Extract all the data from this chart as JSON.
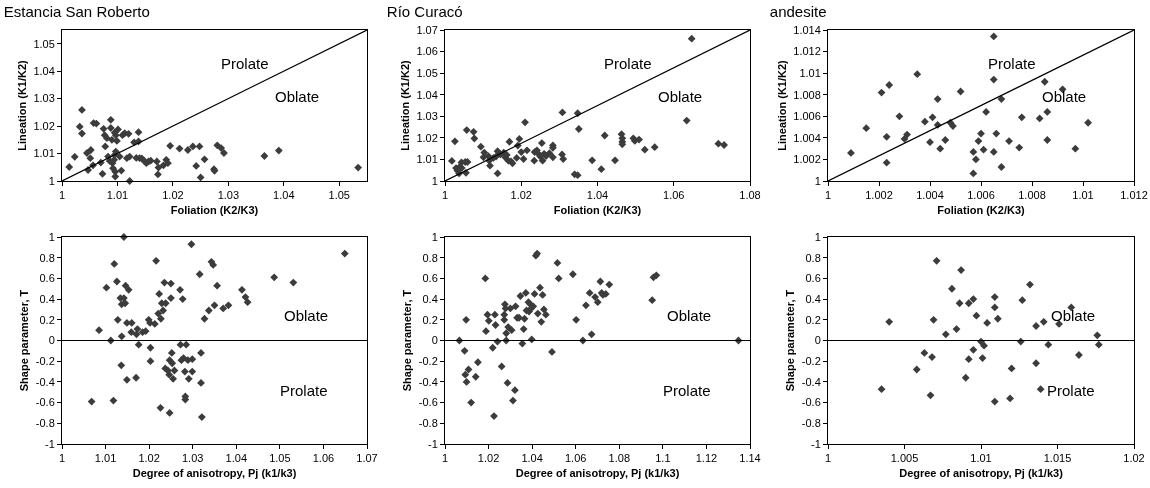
{
  "chart_data": [
    {
      "type": "scatter",
      "title": "Estancia San Roberto",
      "xlabel": "Foliation (K2/K3)",
      "ylabel": "Lineation (K1/K2)",
      "marker": "diamond",
      "grid": false,
      "xlim": [
        1,
        1.055
      ],
      "xticks": [
        1,
        1.01,
        1.02,
        1.03,
        1.04,
        1.05
      ],
      "ylim": [
        1,
        1.055
      ],
      "yticks": [
        1,
        1.01,
        1.02,
        1.03,
        1.04,
        1.05
      ],
      "series": [
        {
          "color": "#3c3c3c",
          "x": [
            1.0013,
            1.0023,
            1.0032,
            1.0036,
            1.0036,
            1.0045,
            1.0047,
            1.0052,
            1.0051,
            1.0056,
            1.0057,
            1.0062,
            1.007,
            1.0073,
            1.0075,
            1.0077,
            1.0078,
            1.0081,
            1.0083,
            1.0086,
            1.0088,
            1.0088,
            1.009,
            1.0091,
            1.0092,
            1.0094,
            1.0095,
            1.0095,
            1.0096,
            1.0096,
            1.0097,
            1.0097,
            1.0099,
            1.0101,
            1.0104,
            1.0107,
            1.0109,
            1.0113,
            1.0117,
            1.012,
            1.0122,
            1.0122,
            1.013,
            1.0134,
            1.0138,
            1.0138,
            1.014,
            1.0144,
            1.0148,
            1.0152,
            1.0156,
            1.016,
            1.0171,
            1.0173,
            1.0174,
            1.0183,
            1.0188,
            1.0191,
            1.0195,
            1.0212,
            1.0227,
            1.0236,
            1.0242,
            1.0248,
            1.025,
            1.0257,
            1.0274,
            1.0275,
            1.028,
            1.0287,
            1.0292,
            1.0365,
            1.0391,
            1.0534
          ],
          "values": [
            1.0051,
            1.0088,
            1.0198,
            1.0173,
            1.0259,
            1.0102,
            1.004,
            1.0113,
            1.0083,
            1.0057,
            1.0211,
            1.0209,
            1.0067,
            1.0026,
            1.019,
            1.0167,
            1.0126,
            1.0156,
            1.0089,
            1.0073,
            1.0223,
            1.0193,
            1.015,
            1.0065,
            1.0046,
            1.0077,
            1.0095,
            1.0176,
            1.0034,
            1.0016,
            1.0167,
            1.0107,
            1.0146,
            1.0188,
            1.0089,
            1.0038,
            1.0167,
            1.0174,
            1.0083,
            1.0172,
            1.0,
            1.0089,
            1.0141,
            1.0084,
            1.0144,
            1.0178,
            1.0083,
            1.0082,
            1.0074,
            1.0065,
            1.0071,
            1.0074,
            1.0071,
            1.0024,
            1.0049,
            1.0057,
            1.0077,
            1.0065,
            1.0128,
            1.0118,
            1.0113,
            1.0126,
            1.0055,
            1.0126,
            1.0013,
            1.0079,
            1.0043,
            1.0037,
            1.013,
            1.012,
            1.0102,
            1.0091,
            1.0111,
            1.0049
          ]
        },
        {
          "type": "line",
          "marker": "none",
          "color": "#000000",
          "x": [
            1,
            1.055
          ],
          "values": [
            1,
            1.055
          ]
        }
      ],
      "annotations": [
        "Prolate",
        "Oblate"
      ]
    },
    {
      "type": "scatter",
      "title": "Río Curacó",
      "xlabel": "Foliation (K2/K3)",
      "ylabel": "Lineation (K1/K2)",
      "marker": "diamond",
      "grid": false,
      "xlim": [
        1,
        1.08
      ],
      "xticks": [
        1,
        1.02,
        1.04,
        1.06,
        1.08
      ],
      "ylim": [
        1,
        1.07
      ],
      "yticks": [
        1,
        1.01,
        1.02,
        1.03,
        1.04,
        1.05,
        1.06,
        1.07
      ],
      "series": [
        {
          "color": "#3c3c3c",
          "x": [
            1.0018,
            1.0026,
            1.0029,
            1.0033,
            1.0037,
            1.0039,
            1.0043,
            1.0044,
            1.0053,
            1.0055,
            1.0057,
            1.0059,
            1.0075,
            1.0077,
            1.0094,
            1.0101,
            1.0103,
            1.0114,
            1.0116,
            1.0118,
            1.0127,
            1.0134,
            1.0138,
            1.0138,
            1.0145,
            1.0154,
            1.0158,
            1.0162,
            1.0166,
            1.0169,
            1.0173,
            1.0177,
            1.0188,
            1.0191,
            1.0195,
            1.02,
            1.0206,
            1.021,
            1.0215,
            1.0234,
            1.0235,
            1.0241,
            1.0245,
            1.025,
            1.0254,
            1.0256,
            1.026,
            1.0265,
            1.0274,
            1.0283,
            1.0283,
            1.0283,
            1.0307,
            1.0308,
            1.031,
            1.034,
            1.0348,
            1.0348,
            1.0351,
            1.0386,
            1.041,
            1.0419,
            1.0446,
            1.0463,
            1.0465,
            1.0465,
            1.0465,
            1.0494,
            1.0498,
            1.0509,
            1.0524,
            1.055,
            1.0634,
            1.0647,
            1.0717,
            1.0732
          ],
          "values": [
            1.0093,
            1.0184,
            1.006,
            1.0047,
            1.0035,
            1.0066,
            1.0086,
            1.006,
            1.0088,
            1.0038,
            1.0236,
            1.0088,
            1.0228,
            1.0197,
            1.0159,
            1.011,
            1.0132,
            1.0115,
            1.0094,
            1.0071,
            1.0107,
            1.0113,
            1.0138,
            1.0035,
            1.0123,
            1.0132,
            1.011,
            1.0121,
            1.0094,
            1.0182,
            1.0091,
            1.0082,
            1.0107,
            1.0164,
            1.0195,
            1.0134,
            1.0102,
            1.0272,
            1.0142,
            1.0094,
            1.0134,
            1.0142,
            1.0126,
            1.0113,
            1.0176,
            1.0094,
            1.0126,
            1.0116,
            1.0129,
            1.0165,
            1.0154,
            1.011,
            1.0123,
            1.0318,
            1.0102,
            1.0031,
            1.0027,
            1.0314,
            1.0241,
            1.0096,
            1.0055,
            1.0211,
            1.0096,
            1.0217,
            1.0198,
            1.0182,
            1.017,
            1.0198,
            1.0186,
            1.0192,
            1.0145,
            1.0157,
            1.028,
            1.066,
            1.0173,
            1.0167
          ]
        },
        {
          "type": "line",
          "marker": "none",
          "color": "#000000",
          "x": [
            1,
            1.08
          ],
          "values": [
            1,
            1.07
          ]
        }
      ],
      "annotations": [
        "Prolate",
        "Oblate"
      ]
    },
    {
      "type": "scatter",
      "title": "andesite",
      "xlabel": "Foliation (K2/K3)",
      "ylabel": "Lineation (K1/K2)",
      "marker": "diamond",
      "grid": false,
      "xlim": [
        1,
        1.012
      ],
      "xticks": [
        1,
        1.002,
        1.004,
        1.006,
        1.008,
        1.01,
        1.012
      ],
      "ylim": [
        1,
        1.014
      ],
      "yticks": [
        1,
        1.002,
        1.004,
        1.006,
        1.008,
        1.01,
        1.012,
        1.014
      ],
      "series": [
        {
          "color": "#3c3c3c",
          "x": [
            1.0009,
            1.0015,
            1.0021,
            1.0023,
            1.0023,
            1.0024,
            1.0028,
            1.003,
            1.0031,
            1.0035,
            1.0038,
            1.004,
            1.0041,
            1.0043,
            1.0043,
            1.0044,
            1.0046,
            1.0048,
            1.0049,
            1.0052,
            1.0057,
            1.0057,
            1.0058,
            1.0059,
            1.006,
            1.0061,
            1.0062,
            1.0065,
            1.0066,
            1.0068,
            1.0068,
            1.0065,
            1.0065,
            1.0071,
            1.0075,
            1.0076,
            1.0083,
            1.0085,
            1.0086,
            1.0086,
            1.0092,
            1.0097,
            1.0102
          ],
          "values": [
            1.0026,
            1.0049,
            1.0082,
            1.0041,
            1.0017,
            1.0089,
            1.006,
            1.0039,
            1.0043,
            1.0099,
            1.0055,
            1.0036,
            1.0059,
            1.0076,
            1.0052,
            1.003,
            1.0038,
            1.0054,
            1.0051,
            1.0083,
            1.0027,
            1.0007,
            1.002,
            1.0037,
            1.0044,
            1.0029,
            1.0064,
            1.0027,
            1.0044,
            1.0013,
            1.0076,
            1.0134,
            1.0094,
            1.0037,
            1.0031,
            1.0059,
            1.0058,
            1.0092,
            1.0064,
            1.0038,
            1.0085,
            1.003,
            1.0054
          ]
        },
        {
          "type": "line",
          "marker": "none",
          "color": "#000000",
          "x": [
            1,
            1.012
          ],
          "values": [
            1,
            1.014
          ]
        }
      ],
      "annotations": [
        "Prolate",
        "Oblate"
      ]
    },
    {
      "type": "scatter",
      "xlabel": "Degree of anisotropy, Pj (k1/k3)",
      "ylabel": "Shape parameter, T",
      "marker": "diamond",
      "grid": false,
      "xlim": [
        1,
        1.07
      ],
      "xticks": [
        1,
        1.01,
        1.02,
        1.03,
        1.04,
        1.05,
        1.06,
        1.07
      ],
      "ylim": [
        -1,
        1
      ],
      "yticks": [
        -1,
        -0.8,
        -0.6,
        -0.4,
        -0.2,
        0,
        0.2,
        0.4,
        0.6,
        0.8,
        1
      ],
      "series": [
        {
          "color": "#3c3c3c",
          "x": [
            1.0068,
            1.0085,
            1.0102,
            1.0112,
            1.0118,
            1.012,
            1.0126,
            1.0128,
            1.0134,
            1.0136,
            1.0137,
            1.0137,
            1.0142,
            1.0142,
            1.0145,
            1.0146,
            1.0149,
            1.0149,
            1.0153,
            1.0159,
            1.016,
            1.017,
            1.0171,
            1.0173,
            1.0176,
            1.0185,
            1.0192,
            1.0199,
            1.0202,
            1.0203,
            1.0203,
            1.0213,
            1.0216,
            1.0221,
            1.0223,
            1.0226,
            1.0227,
            1.0229,
            1.0232,
            1.0235,
            1.0237,
            1.0238,
            1.0243,
            1.0246,
            1.0247,
            1.0247,
            1.025,
            1.025,
            1.0252,
            1.0253,
            1.0255,
            1.0258,
            1.0271,
            1.0272,
            1.0274,
            1.0277,
            1.0279,
            1.0282,
            1.0283,
            1.0283,
            1.0285,
            1.0289,
            1.0291,
            1.0297,
            1.0299,
            1.0299,
            1.0316,
            1.0319,
            1.0319,
            1.0321,
            1.0327,
            1.0337,
            1.0343,
            1.0347,
            1.035,
            1.0356,
            1.037,
            1.0382,
            1.0413,
            1.0421,
            1.0426,
            1.0487,
            1.0531,
            1.0649
          ],
          "values": [
            -0.59,
            0.1,
            0.51,
            0.0,
            -0.58,
            0.74,
            0.57,
            0.2,
            0.41,
            -0.24,
            0.35,
            0.04,
            1.0,
            0.41,
            0.36,
            0.53,
            0.17,
            -0.38,
            0.49,
            0.08,
            0.17,
            -0.36,
            0.06,
            0.11,
            -0.04,
            0.08,
            0.09,
            0.2,
            0.17,
            -0.07,
            -0.2,
            0.16,
            0.77,
            0.26,
            0.45,
            -0.65,
            0.21,
            0.36,
            0.29,
            0.56,
            -0.27,
            0.36,
            -0.29,
            -0.33,
            -0.19,
            -0.7,
            0.55,
            0.41,
            -0.12,
            -0.22,
            -0.37,
            -0.29,
            0.49,
            -0.04,
            -0.19,
            0.4,
            -0.17,
            -0.3,
            -0.54,
            -0.57,
            -0.04,
            -0.19,
            -0.37,
            0.93,
            -0.18,
            -0.3,
            0.64,
            -0.12,
            -0.41,
            -0.74,
            0.21,
            0.29,
            0.76,
            0.73,
            0.34,
            0.53,
            0.31,
            0.34,
            0.49,
            0.42,
            0.37,
            0.61,
            0.56,
            0.84
          ]
        }
      ],
      "ref_lines": [
        {
          "axis": "y",
          "value": 0,
          "color": "#000000"
        }
      ],
      "annotations": [
        "Oblate",
        "Prolate"
      ]
    },
    {
      "type": "scatter",
      "xlabel": "Degree of anisotropy, Pj (k1/k3)",
      "ylabel": "Shape parameter, T",
      "marker": "diamond",
      "grid": false,
      "xlim": [
        1,
        1.14
      ],
      "xticks": [
        1,
        1.02,
        1.04,
        1.06,
        1.08,
        1.1,
        1.12,
        1.14
      ],
      "ylim": [
        -1,
        1
      ],
      "yticks": [
        -1,
        -0.8,
        -0.6,
        -0.4,
        -0.2,
        0,
        0.2,
        0.4,
        0.6,
        0.8,
        1
      ],
      "series": [
        {
          "color": "#3c3c3c",
          "x": [
            1.0066,
            1.009,
            1.0093,
            1.0097,
            1.0099,
            1.0108,
            1.012,
            1.0141,
            1.0151,
            1.0185,
            1.0188,
            1.0195,
            1.0201,
            1.0219,
            1.0225,
            1.0229,
            1.0232,
            1.0241,
            1.026,
            1.0272,
            1.0272,
            1.0275,
            1.0278,
            1.0281,
            1.0281,
            1.0287,
            1.029,
            1.03,
            1.0306,
            1.0312,
            1.0321,
            1.0324,
            1.0331,
            1.034,
            1.0346,
            1.0355,
            1.0361,
            1.0365,
            1.0371,
            1.0374,
            1.0383,
            1.0386,
            1.0392,
            1.0395,
            1.0398,
            1.0405,
            1.0411,
            1.0417,
            1.0423,
            1.0426,
            1.0436,
            1.0442,
            1.0448,
            1.0454,
            1.0463,
            1.0491,
            1.0516,
            1.0522,
            1.0587,
            1.0602,
            1.0633,
            1.0647,
            1.0664,
            1.0673,
            1.0689,
            1.0701,
            1.0713,
            1.0719,
            1.0725,
            1.0738,
            1.0754,
            1.0951,
            1.0957,
            1.097,
            1.1347
          ],
          "values": [
            0.0,
            -0.1,
            -0.33,
            0.2,
            -0.4,
            -0.28,
            -0.6,
            -0.35,
            -0.21,
            0.6,
            0.09,
            0.25,
            0.19,
            -0.07,
            -0.73,
            0.25,
            0.15,
            -0.01,
            -0.25,
            0.25,
            0.2,
            0.35,
            0.31,
            0.07,
            0.0,
            -0.41,
            0.13,
            0.31,
            0.1,
            -0.58,
            -0.48,
            0.33,
            0.22,
            0.22,
            0.43,
            -0.03,
            0.11,
            0.21,
            0.46,
            0.29,
            0.37,
            0.28,
            0.35,
            0.31,
            0.01,
            0.33,
            0.45,
            0.82,
            0.84,
            0.26,
            0.51,
            0.18,
            0.44,
            0.3,
            0.25,
            -0.11,
            0.75,
            0.6,
            0.64,
            0.2,
            0.0,
            0.34,
            0.46,
            0.06,
            0.42,
            0.37,
            0.57,
            0.46,
            0.44,
            0.45,
            0.54,
            0.39,
            0.61,
            0.63,
            0.0
          ]
        }
      ],
      "ref_lines": [
        {
          "axis": "y",
          "value": 0,
          "color": "#000000"
        }
      ],
      "annotations": [
        "Oblate",
        "Prolate"
      ]
    },
    {
      "type": "scatter",
      "xlabel": "Degree of anisotropy, Pj (k1/k3)",
      "ylabel": "Shape parameter, T",
      "marker": "diamond",
      "grid": false,
      "xlim": [
        1,
        1.02
      ],
      "xticks": [
        1,
        1.005,
        1.01,
        1.015,
        1.02
      ],
      "ylim": [
        -1,
        1
      ],
      "yticks": [
        -1,
        -0.8,
        -0.6,
        -0.4,
        -0.2,
        0,
        0.2,
        0.4,
        0.6,
        0.8,
        1
      ],
      "series": [
        {
          "color": "#3c3c3c",
          "x": [
            1.0035,
            1.004,
            1.0058,
            1.0063,
            1.0067,
            1.0068,
            1.0069,
            1.0071,
            1.0077,
            1.0081,
            1.0084,
            1.0086,
            1.0087,
            1.009,
            1.0092,
            1.0092,
            1.0095,
            1.0095,
            1.0097,
            1.01,
            1.0101,
            1.0102,
            1.0104,
            1.0109,
            1.0109,
            1.0109,
            1.0111,
            1.0119,
            1.012,
            1.0126,
            1.0127,
            1.0132,
            1.0136,
            1.0136,
            1.0139,
            1.0141,
            1.0144,
            1.0151,
            1.0159,
            1.0164,
            1.0176,
            1.0177
          ],
          "values": [
            -0.47,
            0.18,
            -0.28,
            -0.12,
            -0.53,
            -0.16,
            0.2,
            0.77,
            0.06,
            0.5,
            0.11,
            0.36,
            0.68,
            -0.36,
            0.36,
            -0.18,
            -0.09,
            0.4,
            0.24,
            -0.01,
            -0.17,
            -0.05,
            0.17,
            0.42,
            -0.59,
            0.32,
            0.21,
            -0.56,
            -0.27,
            -0.01,
            0.39,
            0.54,
            0.14,
            -0.22,
            -0.47,
            0.18,
            -0.04,
            0.16,
            0.32,
            -0.14,
            0.05,
            -0.04
          ]
        }
      ],
      "ref_lines": [
        {
          "axis": "y",
          "value": 0,
          "color": "#000000"
        }
      ],
      "annotations": [
        "Oblate",
        "Prolate"
      ]
    }
  ]
}
